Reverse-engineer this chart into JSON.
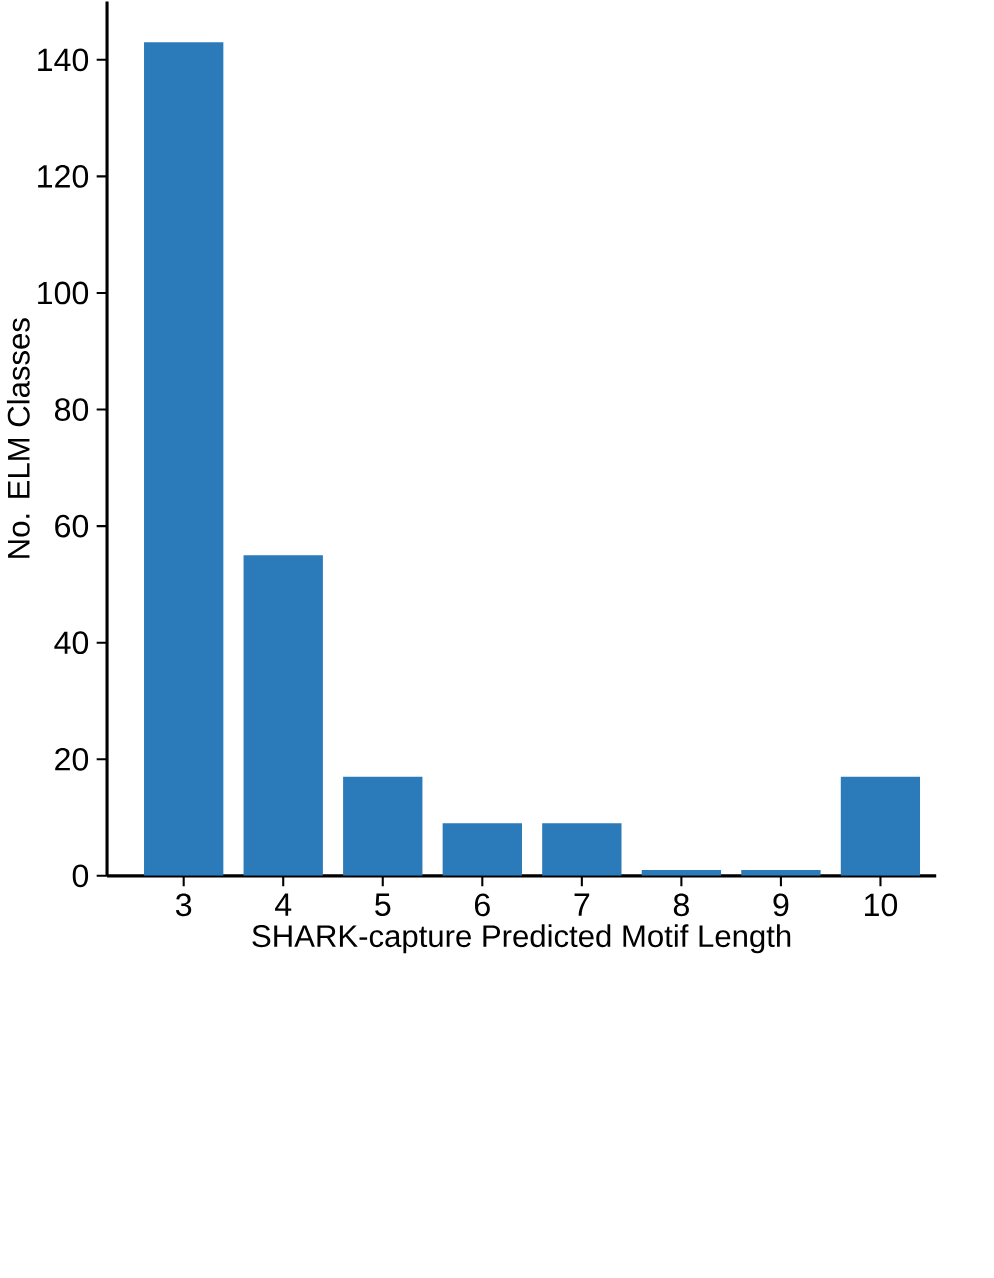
{
  "chart_data": {
    "type": "bar",
    "xlabel": "SHARK-capture Predicted Motif Length",
    "ylabel": "No. ELM Classes",
    "categories": [
      "3",
      "4",
      "5",
      "6",
      "7",
      "8",
      "9",
      "10"
    ],
    "values": [
      143,
      55,
      17,
      9,
      9,
      1,
      1,
      17
    ],
    "color": "#2b7bba",
    "ylim": [
      0,
      150
    ],
    "yticks": [
      0,
      20,
      40,
      60,
      80,
      100,
      120,
      140
    ]
  }
}
